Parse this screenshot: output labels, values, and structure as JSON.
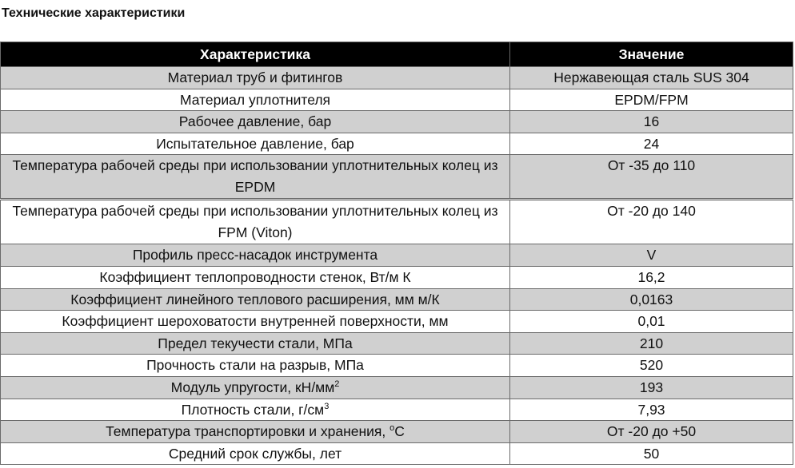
{
  "title": "Технические характеристики",
  "table": {
    "headers": [
      "Характеристика",
      "Значение"
    ],
    "rows": [
      {
        "name": "Материал труб и фитингов",
        "value": "Нержавеющая сталь SUS 304"
      },
      {
        "name": "Материал уплотнителя",
        "value": "EPDM/FPM"
      },
      {
        "name": "Рабочее давление, бар",
        "value": "16"
      },
      {
        "name": "Испытательное давление, бар",
        "value": "24"
      },
      {
        "name": "Температура рабочей среды при использовании уплотнительных колец из EPDM",
        "value": "От -35 до 110"
      },
      {
        "name": "Температура рабочей среды при использовании уплотнительных колец из FPM (Viton)",
        "value": "От -20 до 140"
      },
      {
        "name": "Профиль пресс-насадок инструмента",
        "value": "V"
      },
      {
        "name": "Коэффициент теплопроводности стенок, Вт/м К",
        "value": "16,2"
      },
      {
        "name": "Коэффициент линейного теплового расширения, мм м/К",
        "value": "0,0163"
      },
      {
        "name": "Коэффициент шероховатости внутренней поверхности, мм",
        "value": "0,01"
      },
      {
        "name": "Предел текучести стали, МПа",
        "value": "210"
      },
      {
        "name": "Прочность стали на разрыв, МПа",
        "value": "520"
      },
      {
        "name": "Модуль упругости, кН/мм",
        "sup": "2",
        "value": "193"
      },
      {
        "name": "Плотность стали, г/см",
        "sup": "3",
        "value": "7,93"
      },
      {
        "name": "Температура транспортировки и хранения, ",
        "sup": "o",
        "suffix": "C",
        "value": "От -20 до +50"
      },
      {
        "name": "Средний срок службы, лет",
        "value": "50"
      }
    ]
  }
}
